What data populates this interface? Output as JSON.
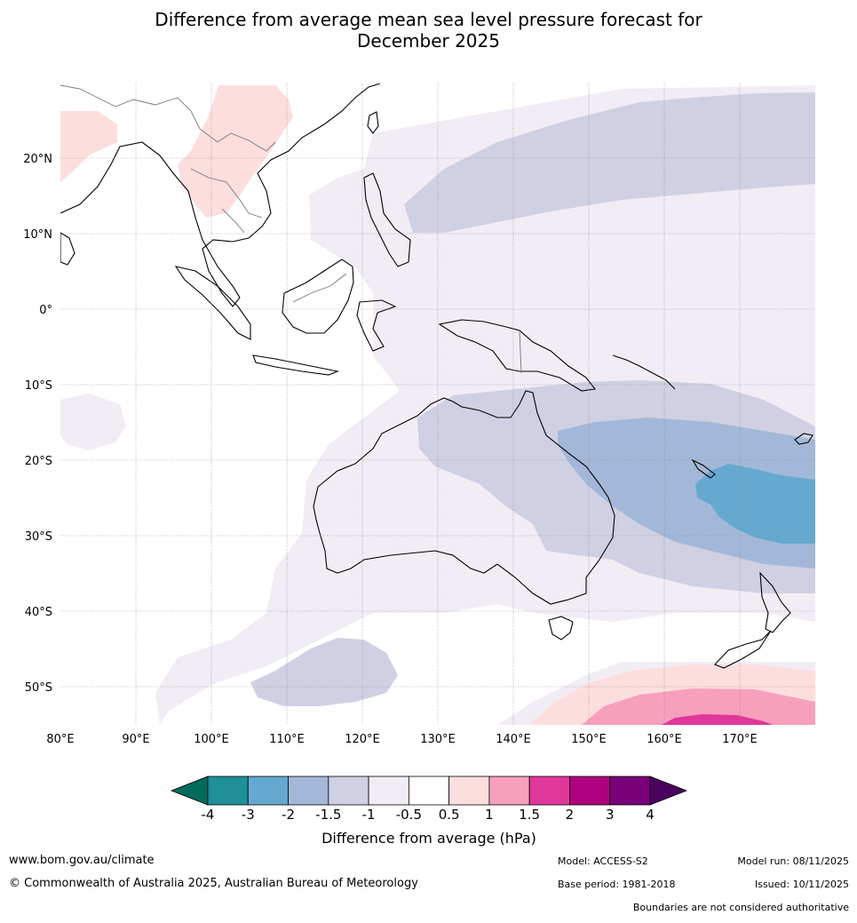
{
  "title": {
    "line1": "Difference from average mean sea level pressure forecast for",
    "line2": "December 2025"
  },
  "map": {
    "lon_labels": [
      "80°E",
      "90°E",
      "100°E",
      "110°E",
      "120°E",
      "130°E",
      "140°E",
      "150°E",
      "160°E",
      "170°E"
    ],
    "lat_labels": [
      "20°N",
      "10°N",
      "0°",
      "10°S",
      "20°S",
      "30°S",
      "40°S",
      "50°S"
    ]
  },
  "legend": {
    "colors": [
      "#006b5a",
      "#1f8f98",
      "#66a9d0",
      "#a3b8d8",
      "#d0d0e4",
      "#f2ecf5",
      "#ffffff",
      "#fddede",
      "#f7a0bc",
      "#e0379a",
      "#ad007e",
      "#7a007a",
      "#4a005e"
    ],
    "tick_labels": [
      "-4",
      "-3",
      "-2",
      "-1.5",
      "-1",
      "-0.5",
      "0.5",
      "1",
      "1.5",
      "2",
      "3",
      "4"
    ],
    "title": "Difference from average (hPa)"
  },
  "footer": {
    "website": "www.bom.gov.au/climate",
    "copyright": "© Commonwealth of Australia 2025, Australian Bureau of Meteorology",
    "model": "Model: ACCESS-S2",
    "base_period": "Base period: 1981-2018",
    "model_run": "Model run: 08/11/2025",
    "issued": "Issued: 10/11/2025",
    "disclaimer": "Boundaries are not considered authoritative"
  }
}
